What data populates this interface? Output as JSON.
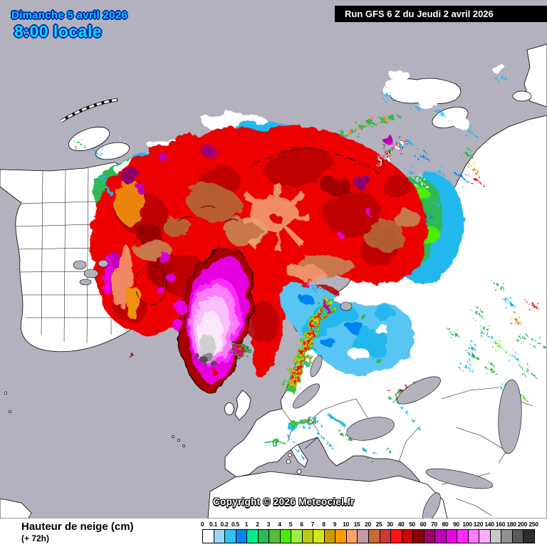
{
  "header": {
    "date_line1": "Dimanche 5 avril 2026",
    "date_line2": "8:00 locale",
    "run_label": "Run GFS 6 Z du Jeudi 2 avril 2026"
  },
  "map": {
    "copyright": "Copyright © 2026 Meteociel.fr"
  },
  "footer": {
    "title": "Hauteur de neige (cm)",
    "subtitle": "(+ 72h)"
  },
  "legend": {
    "tick_labels": [
      "0",
      "0.1",
      "0.2",
      "0.5",
      "1",
      "2",
      "3",
      "4",
      "5",
      "6",
      "7",
      "8",
      "9",
      "10",
      "15",
      "20",
      "25",
      "30",
      "40",
      "50",
      "60",
      "70",
      "80",
      "90",
      "100",
      "120",
      "140",
      "160",
      "180",
      "200",
      "250"
    ],
    "swatch_colors": [
      "#ffffff",
      "#99d9f7",
      "#2ec4f2",
      "#0585ef",
      "#00ec8a",
      "#2eb857",
      "#58b93a",
      "#4bec00",
      "#9dec43",
      "#bccb16",
      "#d4e614",
      "#c99c02",
      "#fe9b02",
      "#fda26d",
      "#c59ba3",
      "#c76a35",
      "#cd3a36",
      "#fe1510",
      "#cf0202",
      "#8b0000",
      "#a00169",
      "#bb02b5",
      "#ea02e6",
      "#fe2cfa",
      "#fe7dfb",
      "#fcaffc",
      "#c8c8c8",
      "#909090",
      "#595959",
      "#2d2d2d"
    ]
  },
  "palette": {
    "sea": "#b4b1be",
    "land": "#ffffff",
    "header_text": "#00ccff",
    "run_box_bg": "#000000",
    "run_box_text": "#ffffff"
  }
}
